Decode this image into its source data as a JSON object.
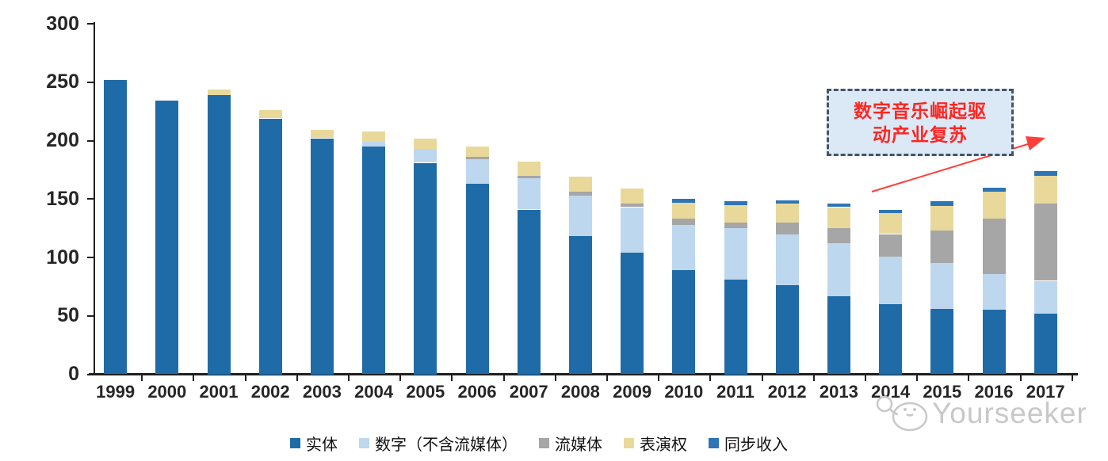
{
  "page": {
    "background": "#FFFFFF"
  },
  "chart_data": {
    "type": "bar",
    "stacked": true,
    "title": "",
    "xlabel": "",
    "ylabel": "",
    "ylim": [
      0,
      300
    ],
    "yticks": [
      0,
      50,
      100,
      150,
      200,
      250,
      300
    ],
    "grid": false,
    "legend_position": "bottom",
    "categories": [
      "1999",
      "2000",
      "2001",
      "2002",
      "2003",
      "2004",
      "2005",
      "2006",
      "2007",
      "2008",
      "2009",
      "2010",
      "2011",
      "2012",
      "2013",
      "2014",
      "2015",
      "2016",
      "2017"
    ],
    "series": [
      {
        "name": "实体",
        "color": "#1F6BA8",
        "values": [
          252,
          234,
          239,
          219,
          202,
          195,
          181,
          163,
          141,
          118,
          104,
          89,
          81,
          76,
          67,
          60,
          56,
          55,
          52
        ]
      },
      {
        "name": "数字（不含流媒体）",
        "color": "#BDD7EE",
        "values": [
          0,
          0,
          0,
          0,
          0,
          4,
          12,
          21,
          27,
          35,
          39,
          39,
          44,
          44,
          45,
          41,
          39,
          31,
          28
        ]
      },
      {
        "name": "流媒体",
        "color": "#A6A6A6",
        "values": [
          0,
          0,
          0,
          0,
          0,
          0,
          0,
          2,
          2,
          3,
          3,
          5,
          5,
          10,
          13,
          19,
          28,
          47,
          66
        ]
      },
      {
        "name": "表演权",
        "color": "#E8D99B",
        "values": [
          0,
          0,
          5,
          7,
          7,
          9,
          9,
          9,
          12,
          13,
          13,
          14,
          15,
          16,
          18,
          18,
          21,
          23,
          24
        ]
      },
      {
        "name": "同步收入",
        "color": "#2E75B6",
        "values": [
          0,
          0,
          0,
          0,
          0,
          0,
          0,
          0,
          0,
          0,
          0,
          3,
          3,
          3,
          3,
          3,
          4,
          4,
          4
        ]
      }
    ]
  },
  "annotation": {
    "line1": "数字音乐崛起驱",
    "line2": "动产业复苏",
    "text_color": "#FF2621",
    "border_color": "#44546A",
    "background": "#DBE8F6",
    "arrow_color": "#FC3F39"
  },
  "watermark": {
    "text": "Yourseeker",
    "color": "#C8C8C8"
  }
}
